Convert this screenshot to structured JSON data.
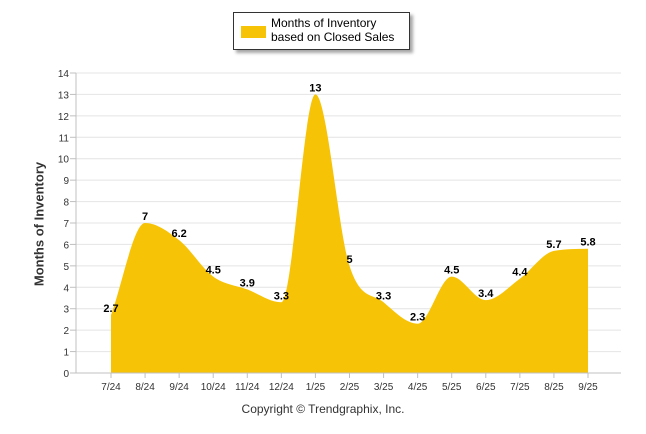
{
  "chart_data": {
    "type": "area",
    "categories": [
      "7/24",
      "8/24",
      "9/24",
      "10/24",
      "11/24",
      "12/24",
      "1/25",
      "2/25",
      "3/25",
      "4/25",
      "5/25",
      "6/25",
      "7/25",
      "8/25",
      "9/25"
    ],
    "series": [
      {
        "name": "Months of Inventory based on Closed Sales",
        "values": [
          2.7,
          7,
          6.2,
          4.5,
          3.9,
          3.3,
          13,
          5,
          3.3,
          2.3,
          4.5,
          3.4,
          4.4,
          5.7,
          5.8
        ]
      }
    ],
    "data_labels": [
      "2.7",
      "7",
      "6.2",
      "4.5",
      "3.9",
      "3.3",
      "13",
      "5",
      "3.3",
      "2.3",
      "4.5",
      "3.4",
      "4.4",
      "5.7",
      "5.8"
    ],
    "yticks": [
      "0",
      "1",
      "2",
      "3",
      "4",
      "5",
      "6",
      "7",
      "8",
      "9",
      "10",
      "11",
      "12",
      "13",
      "14"
    ],
    "ylim": [
      0,
      14
    ],
    "ylabel": "Months of Inventory",
    "xlabel": "",
    "legend_placement": "top-center",
    "grid": true,
    "fill_color": "#f7c307"
  },
  "footer": {
    "copyright": "Copyright © Trendgraphix, Inc."
  }
}
